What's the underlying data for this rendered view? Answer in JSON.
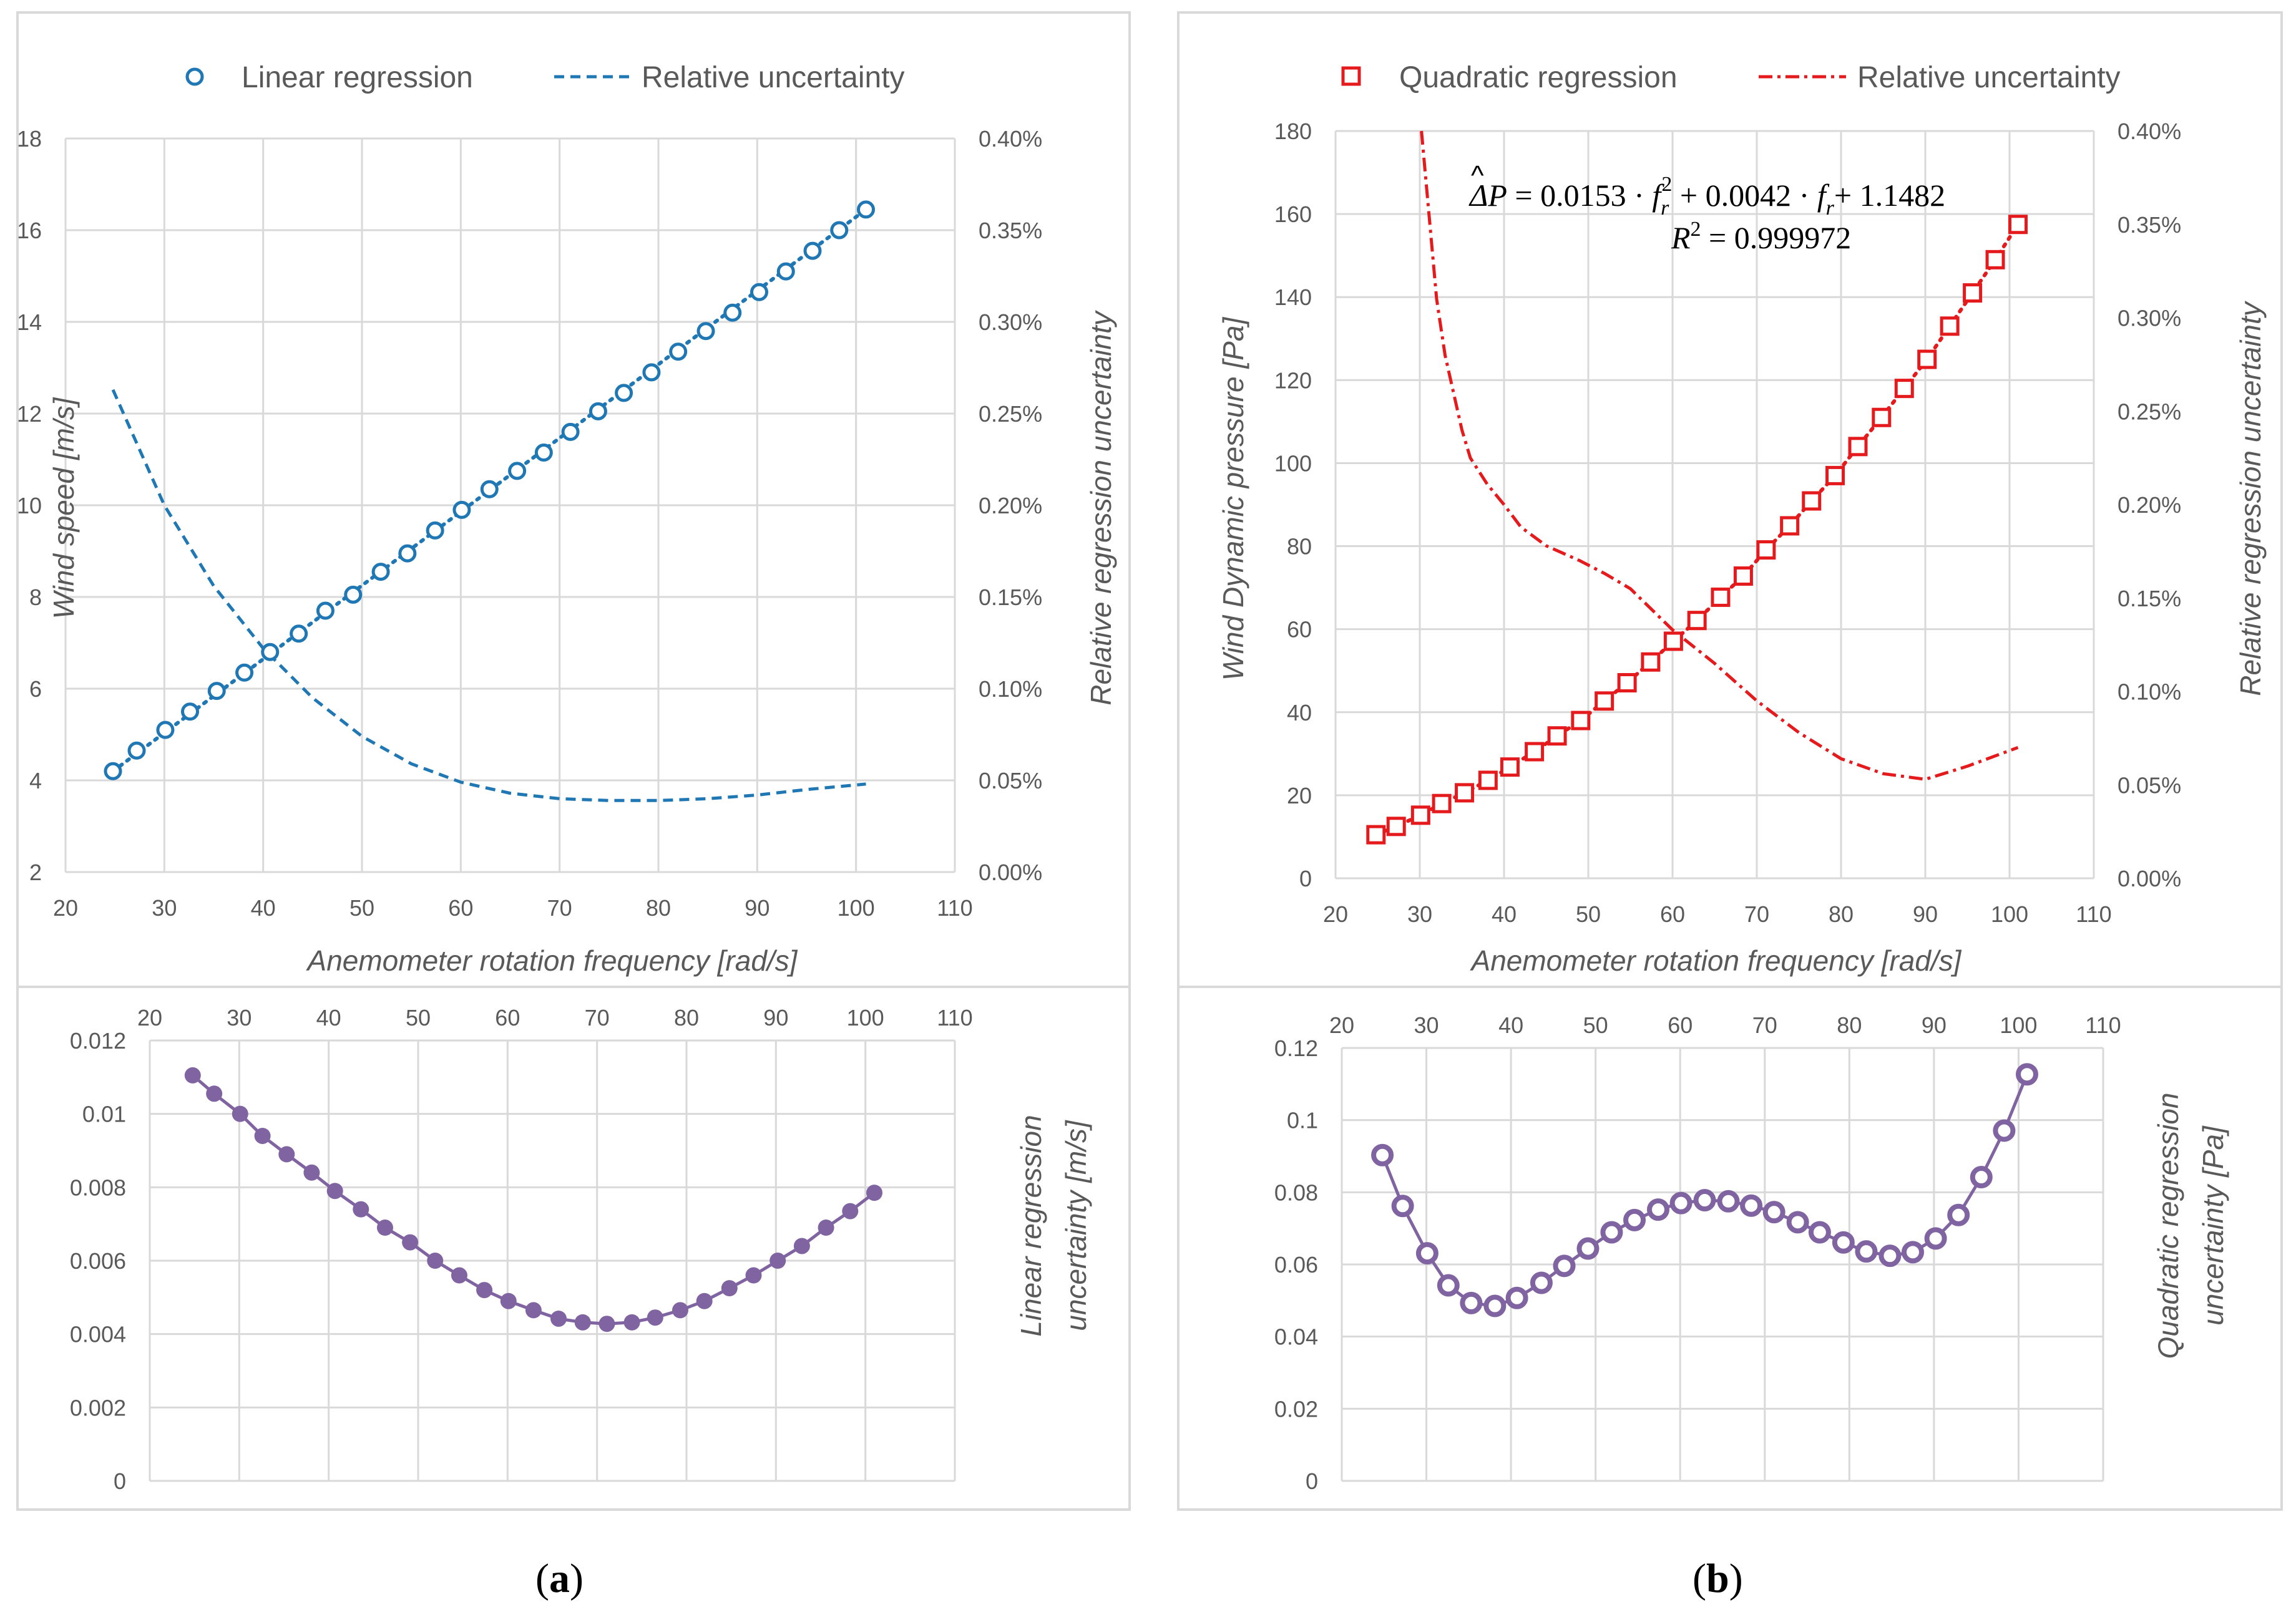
{
  "colors": {
    "blue": "#1f77b4",
    "red": "#e41a1c",
    "purple": "#8064a2",
    "grid": "#d9d9d9",
    "text": "#595959"
  },
  "captions": {
    "a": "a",
    "b": "b"
  },
  "chart_data": [
    {
      "id": "a-top",
      "type": "scatter",
      "legend": [
        "Linear regression",
        "Relative uncertainty"
      ],
      "xlabel": "Anemometer rotation frequency [rad/s]",
      "ylabel": "Wind speed [m/s]",
      "y2label": "Relative regression uncertainty",
      "xlim": [
        20,
        110
      ],
      "xticks": [
        "20",
        "30",
        "40",
        "50",
        "60",
        "70",
        "80",
        "90",
        "100",
        "110"
      ],
      "ylim": [
        2,
        18
      ],
      "yticks": [
        "2",
        "4",
        "6",
        "8",
        "10",
        "12",
        "14",
        "16",
        "18"
      ],
      "y2lim": [
        0,
        0.004
      ],
      "y2ticks": [
        "0.00%",
        "0.05%",
        "0.10%",
        "0.15%",
        "0.20%",
        "0.25%",
        "0.30%",
        "0.35%",
        "0.40%"
      ],
      "series": [
        {
          "name": "Linear regression",
          "axis": "left",
          "x": [
            24.8,
            27.2,
            30.1,
            32.6,
            35.3,
            38.1,
            40.7,
            43.6,
            46.3,
            49.1,
            51.9,
            54.6,
            57.4,
            60.1,
            62.9,
            65.7,
            68.4,
            71.1,
            73.9,
            76.5,
            79.3,
            82.0,
            84.8,
            87.5,
            90.2,
            92.9,
            95.6,
            98.3,
            101.0
          ],
          "y": [
            4.2,
            4.65,
            5.1,
            5.5,
            5.95,
            6.35,
            6.8,
            7.2,
            7.7,
            8.05,
            8.55,
            8.95,
            9.45,
            9.9,
            10.35,
            10.75,
            11.15,
            11.6,
            12.05,
            12.45,
            12.9,
            13.35,
            13.8,
            14.2,
            14.65,
            15.1,
            15.55,
            16.0,
            16.45
          ]
        },
        {
          "name": "Relative uncertainty",
          "axis": "right",
          "x": [
            24.8,
            30,
            35,
            40,
            45,
            50,
            55,
            60,
            65,
            70,
            75,
            80,
            85,
            90,
            95,
            101
          ],
          "y": [
            0.00263,
            0.002,
            0.00156,
            0.00122,
            0.00095,
            0.00074,
            0.00059,
            0.00049,
            0.00043,
            0.0004,
            0.00039,
            0.00039,
            0.0004,
            0.00042,
            0.00045,
            0.00048
          ]
        }
      ]
    },
    {
      "id": "a-bottom",
      "type": "line",
      "xlim": [
        20,
        110
      ],
      "xticks": [
        "20",
        "30",
        "40",
        "50",
        "60",
        "70",
        "80",
        "90",
        "100",
        "110"
      ],
      "ylim": [
        0,
        0.012
      ],
      "yticks": [
        "0",
        "0.002",
        "0.004",
        "0.006",
        "0.008",
        "0.01",
        "0.012"
      ],
      "ylabel_lines": [
        "Linear regression",
        "uncertainty  [m/s]"
      ],
      "series": [
        {
          "name": "Linear regression uncertainty",
          "x": [
            24.8,
            27.2,
            30.1,
            32.6,
            35.3,
            38.1,
            40.7,
            43.6,
            46.3,
            49.1,
            51.9,
            54.6,
            57.4,
            60.1,
            62.9,
            65.7,
            68.4,
            71.1,
            73.9,
            76.5,
            79.3,
            82.0,
            84.8,
            87.5,
            90.2,
            92.9,
            95.6,
            98.3,
            101.0
          ],
          "y": [
            0.01105,
            0.01055,
            0.01,
            0.0094,
            0.0089,
            0.0084,
            0.0079,
            0.0074,
            0.0069,
            0.0065,
            0.006,
            0.0056,
            0.0052,
            0.0049,
            0.00465,
            0.00442,
            0.00432,
            0.00428,
            0.00432,
            0.00445,
            0.00465,
            0.0049,
            0.00525,
            0.0056,
            0.006,
            0.0064,
            0.0069,
            0.00735,
            0.00785
          ]
        }
      ]
    },
    {
      "id": "b-top",
      "type": "scatter",
      "legend": [
        "Quadratic regression",
        "Relative uncertainty"
      ],
      "xlabel": "Anemometer rotation frequency [rad/s]",
      "ylabel": "Wind Dynamic pressure [Pa]",
      "y2label": "Relative regression uncertainty",
      "xlim": [
        20,
        110
      ],
      "xticks": [
        "20",
        "30",
        "40",
        "50",
        "60",
        "70",
        "80",
        "90",
        "100",
        "110"
      ],
      "ylim": [
        0,
        180
      ],
      "yticks": [
        "0",
        "20",
        "40",
        "60",
        "80",
        "100",
        "120",
        "140",
        "160",
        "180"
      ],
      "y2lim": [
        0,
        0.004
      ],
      "y2ticks": [
        "0.00%",
        "0.05%",
        "0.10%",
        "0.15%",
        "0.20%",
        "0.25%",
        "0.30%",
        "0.35%",
        "0.40%"
      ],
      "equation": {
        "lhs": "ΔP",
        "c1": "0.0153",
        "c2": "0.0042",
        "c3": "1.1482",
        "var": "f",
        "sub": "r",
        "sup": "2",
        "r2": "0.999972"
      },
      "series": [
        {
          "name": "Quadratic regression",
          "axis": "left",
          "x": [
            24.8,
            27.2,
            30.1,
            32.6,
            35.3,
            38.1,
            40.7,
            43.6,
            46.3,
            49.1,
            51.9,
            54.6,
            57.4,
            60.1,
            62.9,
            65.7,
            68.4,
            71.1,
            73.9,
            76.5,
            79.3,
            82.0,
            84.8,
            87.5,
            90.2,
            92.9,
            95.6,
            98.3,
            101.0
          ],
          "y": [
            10.5,
            12.5,
            15.2,
            18.0,
            20.6,
            23.6,
            26.8,
            30.5,
            34.3,
            38.0,
            42.7,
            47.1,
            52.1,
            57.1,
            62.1,
            67.7,
            72.8,
            79.1,
            84.9,
            90.9,
            97.0,
            104.0,
            111.0,
            118.0,
            125.0,
            133.0,
            141.0,
            149.0,
            157.5
          ]
        },
        {
          "name": "Relative uncertainty",
          "axis": "right",
          "x": [
            30.2,
            31,
            32,
            33,
            34,
            35,
            36,
            38,
            40,
            42,
            45,
            49,
            52,
            55,
            60,
            65,
            70,
            75,
            80,
            85,
            90,
            95,
            101
          ],
          "y": [
            0.004,
            0.0036,
            0.0031,
            0.0028,
            0.0026,
            0.0024,
            0.00225,
            0.00211,
            0.002,
            0.00188,
            0.00178,
            0.0017,
            0.00163,
            0.00155,
            0.00133,
            0.00115,
            0.00095,
            0.00078,
            0.00064,
            0.00056,
            0.00053,
            0.0006,
            0.0007
          ]
        }
      ]
    },
    {
      "id": "b-bottom",
      "type": "line",
      "xlim": [
        20,
        110
      ],
      "xticks": [
        "20",
        "30",
        "40",
        "50",
        "60",
        "70",
        "80",
        "90",
        "100",
        "110"
      ],
      "ylim": [
        0,
        0.12
      ],
      "yticks": [
        "0",
        "0.02",
        "0.04",
        "0.06",
        "0.08",
        "0.1",
        "0.12"
      ],
      "ylabel_lines": [
        "Quadratic regression",
        "uncertainty  [Pa]"
      ],
      "series": [
        {
          "name": "Quadratic regression uncertainty",
          "x": [
            24.8,
            27.2,
            30.1,
            32.6,
            35.3,
            38.1,
            40.7,
            43.6,
            46.3,
            49.1,
            51.9,
            54.6,
            57.4,
            60.1,
            62.9,
            65.7,
            68.4,
            71.1,
            73.9,
            76.5,
            79.3,
            82.0,
            84.8,
            87.5,
            90.2,
            92.9,
            95.6,
            98.3,
            101.0
          ],
          "y": [
            0.0903,
            0.0762,
            0.0631,
            0.0542,
            0.0493,
            0.0485,
            0.0507,
            0.0549,
            0.0596,
            0.0644,
            0.0689,
            0.0723,
            0.0752,
            0.077,
            0.0778,
            0.0775,
            0.0763,
            0.0745,
            0.0717,
            0.0689,
            0.0661,
            0.0636,
            0.0624,
            0.0634,
            0.0672,
            0.0737,
            0.0842,
            0.0971,
            0.1127
          ]
        }
      ]
    }
  ]
}
